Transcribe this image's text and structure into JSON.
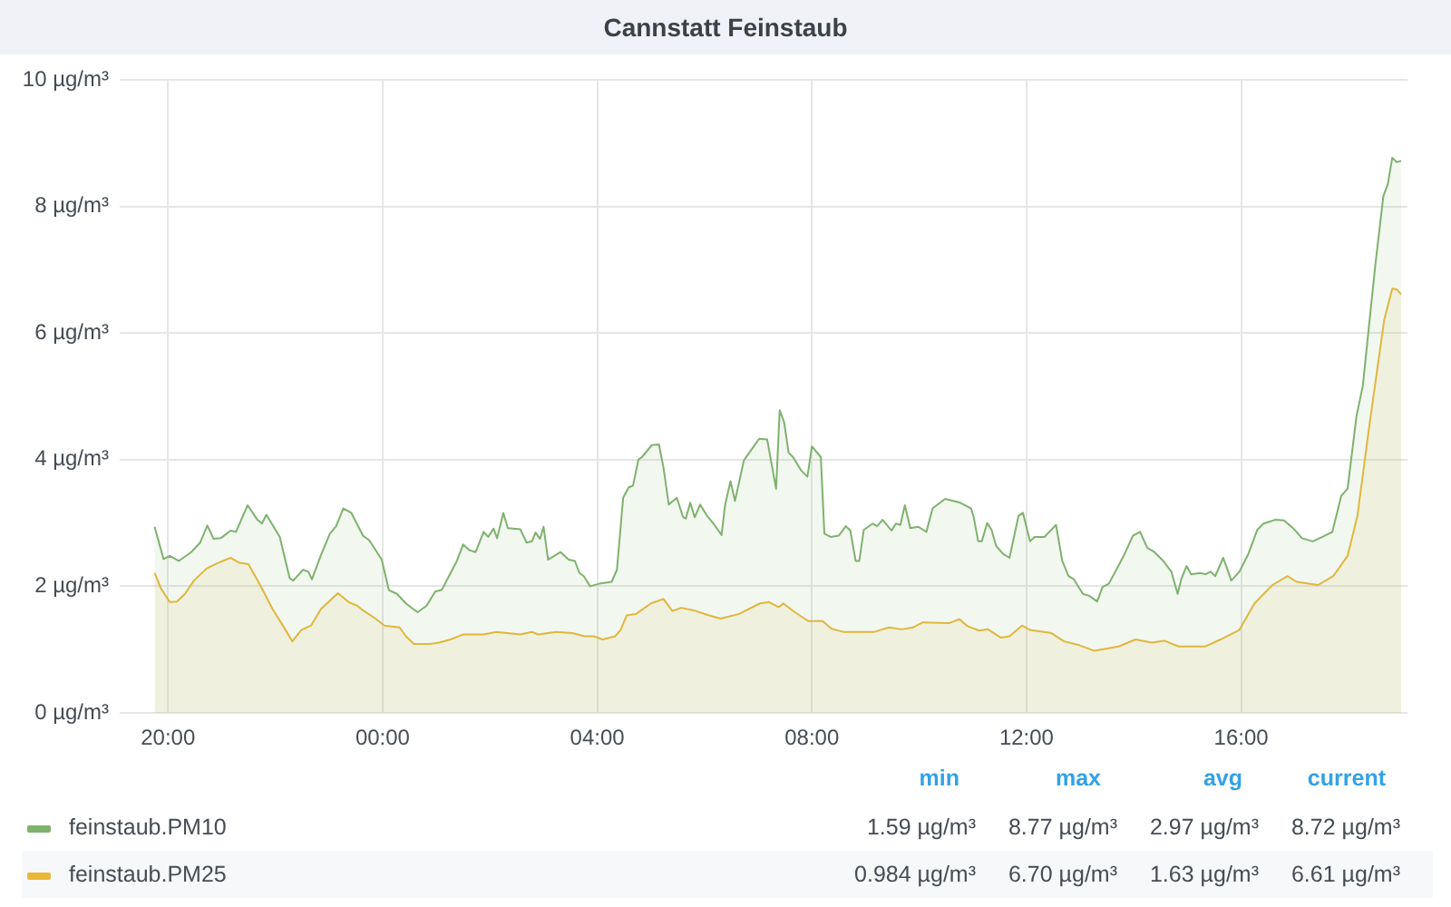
{
  "chart_data": {
    "type": "area",
    "title": "Cannstatt Feinstaub",
    "xlim": [
      "--01-01T19:06",
      "--01-02T19:06"
    ],
    "xticks": [
      {
        "value": "--01-01T20:00",
        "label": "20:00"
      },
      {
        "value": "--01-02T00:00",
        "label": "00:00"
      },
      {
        "value": "--01-02T04:00",
        "label": "04:00"
      },
      {
        "value": "--01-02T08:00",
        "label": "08:00"
      },
      {
        "value": "--01-02T12:00",
        "label": "12:00"
      },
      {
        "value": "--01-02T16:00",
        "label": "16:00"
      }
    ],
    "ylim": [
      0,
      10
    ],
    "yticks": [
      {
        "value": 0,
        "label": "0 µg/m³"
      },
      {
        "value": 2,
        "label": "2 µg/m³"
      },
      {
        "value": 4,
        "label": "4 µg/m³"
      },
      {
        "value": 6,
        "label": "6 µg/m³"
      },
      {
        "value": 8,
        "label": "8 µg/m³"
      },
      {
        "value": 10,
        "label": "10 µg/m³"
      }
    ],
    "grid": true,
    "legend": "bottom",
    "annotations": [
      "min",
      "max",
      "avg",
      "current",
      "1.59 µg/m³",
      "8.77 µg/m³",
      "2.97 µg/m³",
      "8.72 µg/m³",
      "0.984 µg/m³",
      "6.70 µg/m³",
      "1.63 µg/m³",
      "6.61 µg/m³"
    ],
    "series": [
      {
        "name": "feinstaub.PM10",
        "color": "#7eb26d",
        "x": [
          "--01-01T19:45",
          "--01-01T19:55",
          "--01-01T20:02",
          "--01-01T20:12",
          "--01-01T20:26",
          "--01-01T20:36",
          "--01-01T20:44",
          "--01-01T20:51",
          "--01-01T20:59",
          "--01-01T21:10",
          "--01-01T21:16",
          "--01-01T21:29",
          "--01-01T21:40",
          "--01-01T21:45",
          "--01-01T21:50",
          "--01-01T22:05",
          "--01-01T22:16",
          "--01-01T22:20",
          "--01-01T22:31",
          "--01-01T22:37",
          "--01-01T22:41",
          "--01-01T22:51",
          "--01-01T23:01",
          "--01-01T23:08",
          "--01-01T23:16",
          "--01-01T23:25",
          "--01-01T23:38",
          "--01-01T23:45",
          "--01-01T23:59",
          "--01-02T00:07",
          "--01-02T00:16",
          "--01-02T00:26",
          "--01-02T00:39",
          "--01-02T00:49",
          "--01-02T00:59",
          "--01-02T01:06",
          "--01-02T01:23",
          "--01-02T01:30",
          "--01-02T01:37",
          "--01-02T01:44",
          "--01-02T01:53",
          "--01-02T01:58",
          "--01-02T02:04",
          "--01-02T02:08",
          "--01-02T02:15",
          "--01-02T02:20",
          "--01-02T02:34",
          "--01-02T02:41",
          "--01-02T02:47",
          "--01-02T02:51",
          "--01-02T02:56",
          "--01-02T03:00",
          "--01-02T03:05",
          "--01-02T03:19",
          "--01-02T03:28",
          "--01-02T03:35",
          "--01-02T03:40",
          "--01-02T03:45",
          "--01-02T03:52",
          "--01-02T04:02",
          "--01-02T04:16",
          "--01-02T04:22",
          "--01-02T04:29",
          "--01-02T04:35",
          "--01-02T04:40",
          "--01-02T04:46",
          "--01-02T04:50",
          "--01-02T05:01",
          "--01-02T05:09",
          "--01-02T05:14",
          "--01-02T05:20",
          "--01-02T05:29",
          "--01-02T05:36",
          "--01-02T05:39",
          "--01-02T05:44",
          "--01-02T05:49",
          "--01-02T05:55",
          "--01-02T06:03",
          "--01-02T06:10",
          "--01-02T06:19",
          "--01-02T06:23",
          "--01-02T06:29",
          "--01-02T06:34",
          "--01-02T06:44",
          "--01-02T06:50",
          "--01-02T07:01",
          "--01-02T07:10",
          "--01-02T07:20",
          "--01-02T07:24",
          "--01-02T07:29",
          "--01-02T07:34",
          "--01-02T07:39",
          "--01-02T07:48",
          "--01-02T07:55",
          "--01-02T08:00",
          "--01-02T08:10",
          "--01-02T08:14",
          "--01-02T08:21",
          "--01-02T08:30",
          "--01-02T08:38",
          "--01-02T08:43",
          "--01-02T08:49",
          "--01-02T08:53",
          "--01-02T08:58",
          "--01-02T09:08",
          "--01-02T09:13",
          "--01-02T09:19",
          "--01-02T09:29",
          "--01-02T09:34",
          "--01-02T09:39",
          "--01-02T09:44",
          "--01-02T09:50",
          "--01-02T09:59",
          "--01-02T10:08",
          "--01-02T10:15",
          "--01-02T10:29",
          "--01-02T10:46",
          "--01-02T10:58",
          "--01-02T11:01",
          "--01-02T11:06",
          "--01-02T11:10",
          "--01-02T11:16",
          "--01-02T11:21",
          "--01-02T11:26",
          "--01-02T11:34",
          "--01-02T11:41",
          "--01-02T11:51",
          "--01-02T11:56",
          "--01-02T12:04",
          "--01-02T12:09",
          "--01-02T12:20",
          "--01-02T12:33",
          "--01-02T12:40",
          "--01-02T12:47",
          "--01-02T12:53",
          "--01-02T13:03",
          "--01-02T13:10",
          "--01-02T13:19",
          "--01-02T13:25",
          "--01-02T13:32",
          "--01-02T13:49",
          "--01-02T13:59",
          "--01-02T14:07",
          "--01-02T14:15",
          "--01-02T14:23",
          "--01-02T14:33",
          "--01-02T14:42",
          "--01-02T14:49",
          "--01-02T14:53",
          "--01-02T14:59",
          "--01-02T15:04",
          "--01-02T15:14",
          "--01-02T15:20",
          "--01-02T15:26",
          "--01-02T15:31",
          "--01-02T15:40",
          "--01-02T15:49",
          "--01-02T15:58",
          "--01-02T16:08",
          "--01-02T16:18",
          "--01-02T16:25",
          "--01-02T16:38",
          "--01-02T16:48",
          "--01-02T16:58",
          "--01-02T17:08",
          "--01-02T17:20",
          "--01-02T17:31",
          "--01-02T17:42",
          "--01-02T17:52",
          "--01-02T17:59",
          "--01-02T18:09",
          "--01-02T18:16",
          "--01-02T18:30",
          "--01-02T18:39",
          "--01-02T18:44",
          "--01-02T18:49",
          "--01-02T18:54",
          "--01-02T18:59"
        ],
        "values": [
          2.94,
          2.43,
          2.48,
          2.4,
          2.54,
          2.69,
          2.96,
          2.75,
          2.76,
          2.88,
          2.86,
          3.28,
          3.05,
          2.99,
          3.13,
          2.78,
          2.13,
          2.09,
          2.26,
          2.23,
          2.11,
          2.49,
          2.83,
          2.95,
          3.23,
          3.16,
          2.8,
          2.73,
          2.42,
          1.94,
          1.88,
          1.73,
          1.59,
          1.69,
          1.92,
          1.94,
          2.4,
          2.66,
          2.57,
          2.54,
          2.86,
          2.78,
          2.91,
          2.76,
          3.16,
          2.92,
          2.9,
          2.69,
          2.71,
          2.85,
          2.75,
          2.94,
          2.42,
          2.54,
          2.42,
          2.4,
          2.21,
          2.16,
          2.0,
          2.04,
          2.07,
          2.26,
          3.4,
          3.56,
          3.59,
          4.0,
          4.04,
          4.23,
          4.24,
          3.88,
          3.29,
          3.4,
          3.09,
          3.07,
          3.32,
          3.09,
          3.29,
          3.11,
          2.99,
          2.81,
          3.29,
          3.66,
          3.35,
          3.99,
          4.11,
          4.33,
          4.32,
          3.54,
          4.78,
          4.59,
          4.11,
          4.04,
          3.83,
          3.73,
          4.21,
          4.04,
          2.83,
          2.78,
          2.8,
          2.95,
          2.88,
          2.4,
          2.4,
          2.89,
          2.99,
          2.95,
          3.05,
          2.88,
          2.99,
          2.97,
          3.28,
          2.92,
          2.94,
          2.86,
          3.23,
          3.38,
          3.32,
          3.23,
          3.09,
          2.71,
          2.71,
          3.0,
          2.89,
          2.64,
          2.51,
          2.45,
          3.11,
          3.16,
          2.71,
          2.78,
          2.78,
          2.97,
          2.4,
          2.16,
          2.11,
          1.88,
          1.85,
          1.76,
          1.99,
          2.04,
          2.49,
          2.8,
          2.86,
          2.61,
          2.54,
          2.4,
          2.23,
          1.88,
          2.11,
          2.32,
          2.19,
          2.21,
          2.19,
          2.23,
          2.16,
          2.45,
          2.09,
          2.23,
          2.51,
          2.89,
          2.99,
          3.05,
          3.04,
          2.92,
          2.76,
          2.71,
          2.78,
          2.86,
          3.43,
          3.54,
          4.69,
          5.16,
          7.07,
          8.16,
          8.35,
          8.77,
          8.7,
          8.72
        ]
      },
      {
        "name": "feinstaub.PM25",
        "color": "#eab839",
        "x": [
          "--01-01T19:45",
          "--01-01T19:52",
          "--01-01T20:02",
          "--01-01T20:10",
          "--01-01T20:19",
          "--01-01T20:29",
          "--01-01T20:43",
          "--01-01T20:56",
          "--01-01T21:10",
          "--01-01T21:20",
          "--01-01T21:30",
          "--01-01T21:43",
          "--01-01T21:57",
          "--01-01T22:11",
          "--01-01T22:19",
          "--01-01T22:29",
          "--01-01T22:40",
          "--01-01T22:51",
          "--01-01T23:10",
          "--01-01T23:22",
          "--01-01T23:32",
          "--01-01T23:38",
          "--01-01T23:52",
          "--01-02T00:02",
          "--01-02T00:19",
          "--01-02T00:26",
          "--01-02T00:35",
          "--01-02T00:53",
          "--01-02T01:03",
          "--01-02T01:16",
          "--01-02T01:30",
          "--01-02T01:53",
          "--01-02T02:07",
          "--01-02T02:34",
          "--01-02T02:47",
          "--01-02T02:54",
          "--01-02T03:14",
          "--01-02T03:32",
          "--01-02T03:46",
          "--01-02T03:56",
          "--01-02T04:06",
          "--01-02T04:20",
          "--01-02T04:26",
          "--01-02T04:33",
          "--01-02T04:43",
          "--01-02T05:00",
          "--01-02T05:14",
          "--01-02T05:24",
          "--01-02T05:34",
          "--01-02T05:48",
          "--01-02T06:05",
          "--01-02T06:18",
          "--01-02T06:38",
          "--01-02T07:02",
          "--01-02T07:12",
          "--01-02T07:23",
          "--01-02T07:28",
          "--01-02T07:41",
          "--01-02T07:56",
          "--01-02T08:12",
          "--01-02T08:22",
          "--01-02T08:35",
          "--01-02T09:10",
          "--01-02T09:26",
          "--01-02T09:40",
          "--01-02T09:53",
          "--01-02T10:04",
          "--01-02T10:34",
          "--01-02T10:45",
          "--01-02T10:54",
          "--01-02T11:07",
          "--01-02T11:17",
          "--01-02T11:31",
          "--01-02T11:41",
          "--01-02T11:55",
          "--01-02T12:04",
          "--01-02T12:28",
          "--01-02T12:42",
          "--01-02T12:59",
          "--01-02T13:16",
          "--01-02T13:43",
          "--01-02T14:02",
          "--01-02T14:20",
          "--01-02T14:34",
          "--01-02T14:50",
          "--01-02T15:20",
          "--01-02T15:37",
          "--01-02T15:58",
          "--01-02T16:15",
          "--01-02T16:35",
          "--01-02T16:52",
          "--01-02T17:02",
          "--01-02T17:26",
          "--01-02T17:43",
          "--01-02T17:59",
          "--01-02T18:10",
          "--01-02T18:23",
          "--01-02T18:40",
          "--01-02T18:49",
          "--01-02T18:54",
          "--01-02T18:59"
        ],
        "values": [
          2.21,
          1.97,
          1.75,
          1.76,
          1.88,
          2.09,
          2.28,
          2.37,
          2.45,
          2.37,
          2.35,
          2.02,
          1.64,
          1.32,
          1.13,
          1.31,
          1.38,
          1.64,
          1.89,
          1.75,
          1.69,
          1.62,
          1.49,
          1.38,
          1.35,
          1.21,
          1.09,
          1.09,
          1.11,
          1.16,
          1.24,
          1.24,
          1.28,
          1.24,
          1.28,
          1.24,
          1.28,
          1.26,
          1.21,
          1.21,
          1.16,
          1.21,
          1.31,
          1.54,
          1.56,
          1.73,
          1.8,
          1.61,
          1.66,
          1.62,
          1.54,
          1.49,
          1.56,
          1.73,
          1.75,
          1.67,
          1.73,
          1.59,
          1.45,
          1.45,
          1.33,
          1.28,
          1.28,
          1.35,
          1.32,
          1.35,
          1.43,
          1.42,
          1.48,
          1.37,
          1.3,
          1.32,
          1.19,
          1.21,
          1.38,
          1.31,
          1.26,
          1.13,
          1.07,
          0.98,
          1.05,
          1.16,
          1.11,
          1.14,
          1.05,
          1.05,
          1.16,
          1.31,
          1.73,
          2.02,
          2.16,
          2.07,
          2.02,
          2.16,
          2.48,
          3.11,
          4.5,
          6.21,
          6.7,
          6.69,
          6.61
        ]
      }
    ]
  }
}
